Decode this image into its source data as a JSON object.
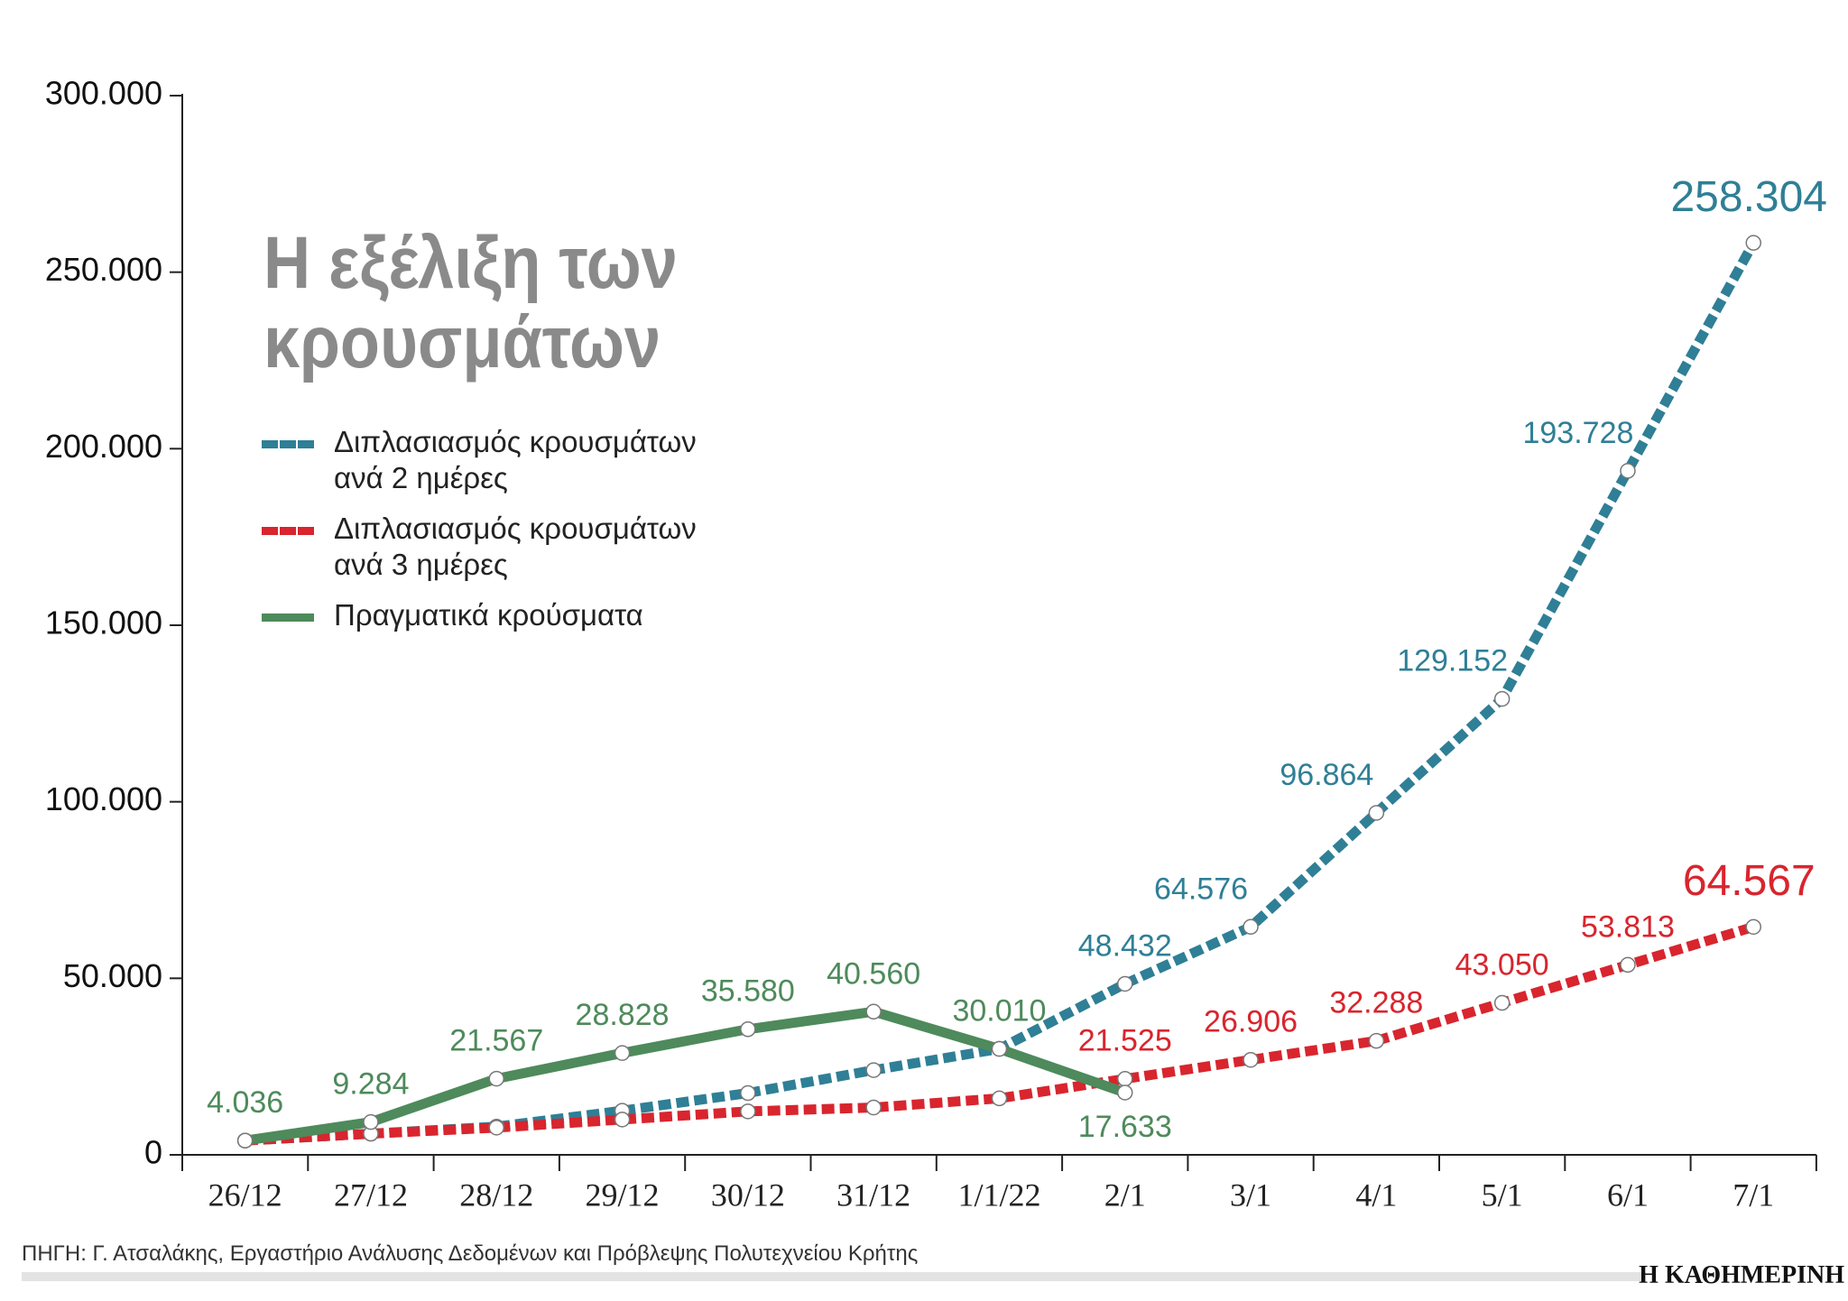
{
  "chart_data": {
    "type": "line",
    "title": "Η εξέλιξη των κρουσμάτων",
    "categories": [
      "26/12",
      "27/12",
      "28/12",
      "29/12",
      "30/12",
      "31/12",
      "1/1/22",
      "2/1",
      "3/1",
      "4/1",
      "5/1",
      "6/1",
      "7/1"
    ],
    "series": [
      {
        "name": "Διπλασιασμός κρουσμάτων ανά 2 ημέρες",
        "color": "#2f7f96",
        "dashed": true,
        "values": [
          4036,
          6000,
          8000,
          12500,
          17500,
          24000,
          30010,
          48432,
          64576,
          96864,
          129152,
          193728,
          258304
        ],
        "value_labels": [
          null,
          null,
          null,
          null,
          null,
          null,
          null,
          "48.432",
          "64.576",
          "96.864",
          "129.152",
          "193.728",
          "258.304"
        ]
      },
      {
        "name": "Διπλασιασμός κρουσμάτων ανά 3 ημέρες",
        "color": "#d8252e",
        "dashed": true,
        "values": [
          4036,
          6000,
          7700,
          10000,
          12300,
          13400,
          16000,
          21525,
          26906,
          32288,
          43050,
          53813,
          64567
        ],
        "value_labels": [
          null,
          null,
          null,
          null,
          null,
          null,
          null,
          "21.525",
          "26.906",
          "32.288",
          "43.050",
          "53.813",
          "64.567"
        ]
      },
      {
        "name": "Πραγματικά κρούσματα",
        "color": "#4e8a5b",
        "dashed": false,
        "values": [
          4036,
          9284,
          21567,
          28828,
          35580,
          40560,
          30010,
          17633,
          null,
          null,
          null,
          null,
          null
        ],
        "value_labels": [
          "4.036",
          "9.284",
          "21.567",
          "28.828",
          "35.580",
          "40.560",
          "30.010",
          "17.633",
          null,
          null,
          null,
          null,
          null
        ]
      }
    ],
    "ylim": [
      0,
      300000
    ],
    "yticks": [
      0,
      {
        "value": 50000,
        "label": "50.000"
      },
      {
        "value": 100000,
        "label": "100.000"
      },
      {
        "value": 150000,
        "label": "150.000"
      },
      {
        "value": 200000,
        "label": "200.000"
      },
      {
        "value": 250000,
        "label": "250.000"
      },
      {
        "value": 300000,
        "label": "300.000"
      }
    ],
    "grid": false,
    "legend": "upper left",
    "source": "ΠΗΓΗ: Γ. Ατσαλάκης, Εργαστήριο Ανάλυσης Δεδομένων και Πρόβλεψης Πολυτεχνείου Κρήτης",
    "publisher": "Η ΚΑΘΗΜΕΡΙΝΗ"
  }
}
